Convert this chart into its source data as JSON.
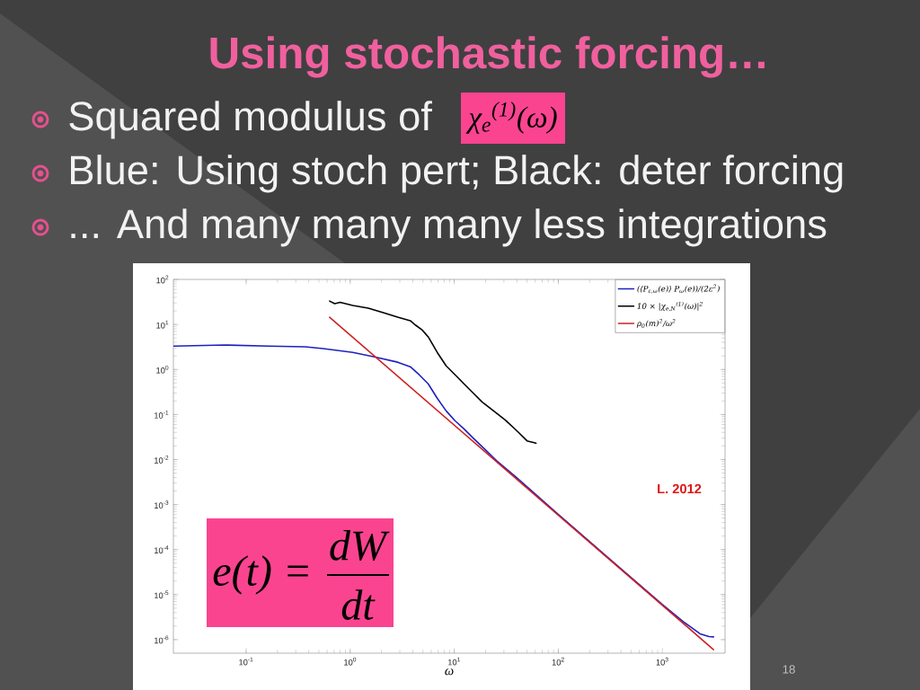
{
  "chart_data": {
    "type": "line",
    "title": "Using stochastic forcing…",
    "annotations": [
      "Squared modulus of",
      "χ$_{e}$$^{(1)}$(ω)",
      "Blue: Using stoch pert; Black: deter forcing",
      "... And many many many less integrations",
      "e(t) =",
      "dW",
      "dt",
      "L. 2012",
      "18"
    ],
    "xlabel": "ω",
    "log": "xy",
    "xlim": [
      0.02,
      4000
    ],
    "ylim": [
      5e-07,
      100
    ],
    "xticks": [
      {
        "value": 0.1,
        "label": "10$^{-1}$"
      },
      {
        "value": 1,
        "label": "10$^{0}$"
      },
      {
        "value": 10,
        "label": "10$^{1}$"
      },
      {
        "value": 100,
        "label": "10$^{2}$"
      },
      {
        "value": 1000,
        "label": "10$^{3}$"
      }
    ],
    "yticks": [
      {
        "value": 1e-06,
        "label": "10$^{-6}$"
      },
      {
        "value": 1e-05,
        "label": "10$^{-5}$"
      },
      {
        "value": 0.0001,
        "label": "10$^{-4}$"
      },
      {
        "value": 0.001,
        "label": "10$^{-3}$"
      },
      {
        "value": 0.01,
        "label": "10$^{-2}$"
      },
      {
        "value": 0.1,
        "label": "10$^{-1}$"
      },
      {
        "value": 1,
        "label": "10$^{0}$"
      },
      {
        "value": 10,
        "label": "10$^{1}$"
      },
      {
        "value": 100,
        "label": "10$^{2}$"
      }
    ],
    "legend": "top right",
    "series": [
      {
        "name": "(⟨P$_{ε,ω}$(e)⟩ P$_{ω}$(e))/(2ε$^{2}$)",
        "color": "#2020c0",
        "x": [
          0.02,
          0.062,
          0.168,
          0.37,
          0.55,
          1.06,
          1.71,
          2.86,
          3.78,
          4.61,
          5.62,
          6.86,
          8.36,
          10.2,
          12.4,
          15.2,
          19.6,
          25.4,
          40,
          100,
          316,
          1000,
          1585,
          2300,
          2800,
          3100
        ],
        "values": [
          3.3,
          3.5,
          3.3,
          3.2,
          2.9,
          2.4,
          1.9,
          1.45,
          1.15,
          0.76,
          0.48,
          0.23,
          0.12,
          0.072,
          0.048,
          0.03,
          0.017,
          0.0095,
          0.0039,
          0.0006,
          6e-05,
          6e-06,
          2.5e-06,
          1.35e-06,
          1.17e-06,
          1.15e-06
        ]
      },
      {
        "name": "10 × |χ$_{e,N}$$^{(1)}$(ω)|$^{2}$",
        "color": "#000000",
        "x": [
          0.634,
          0.71,
          0.8,
          1.06,
          1.49,
          2.08,
          2.86,
          3.78,
          4.26,
          4.9,
          5.62,
          6.86,
          8.36,
          10.2,
          12.4,
          15.2,
          18.5,
          23.9,
          31,
          41,
          50,
          61
        ],
        "values": [
          33,
          29,
          31,
          26.5,
          23,
          18.3,
          14.5,
          12.1,
          9.6,
          7.6,
          5.3,
          2.4,
          1.2,
          0.76,
          0.48,
          0.3,
          0.19,
          0.12,
          0.075,
          0.041,
          0.026,
          0.023
        ]
      },
      {
        "name": "ρ$_{0}$(m)$^{2}$/ω$^{2}$",
        "color": "#cc2222",
        "type": "line",
        "x": [
          0.634,
          3100
        ],
        "values": [
          14.5,
          6e-07
        ]
      }
    ]
  }
}
